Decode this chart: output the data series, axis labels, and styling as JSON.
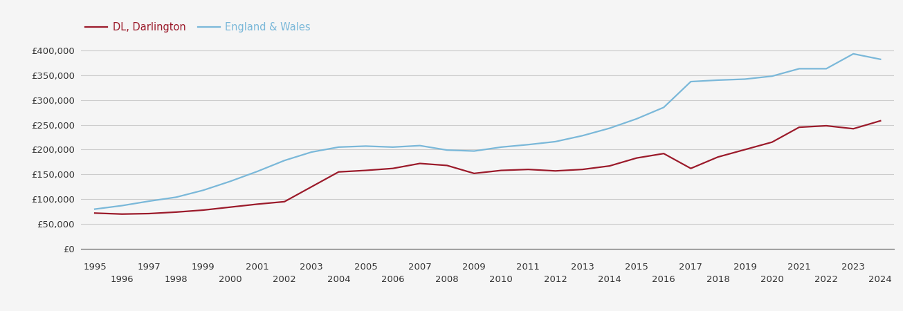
{
  "legend_labels": [
    "DL, Darlington",
    "England & Wales"
  ],
  "darlington_color": "#9b1a2a",
  "ew_color": "#7ab8d9",
  "background_color": "#f5f5f5",
  "grid_color": "#cccccc",
  "years": [
    1995,
    1996,
    1997,
    1998,
    1999,
    2000,
    2001,
    2002,
    2003,
    2004,
    2005,
    2006,
    2007,
    2008,
    2009,
    2010,
    2011,
    2012,
    2013,
    2014,
    2015,
    2016,
    2017,
    2018,
    2019,
    2020,
    2021,
    2022,
    2023,
    2024
  ],
  "darlington": [
    72000,
    70000,
    71000,
    74000,
    78000,
    84000,
    90000,
    95000,
    125000,
    155000,
    158000,
    162000,
    172000,
    168000,
    152000,
    158000,
    160000,
    157000,
    160000,
    167000,
    183000,
    192000,
    162000,
    185000,
    200000,
    215000,
    245000,
    248000,
    242000,
    258000
  ],
  "england_wales": [
    80000,
    87000,
    96000,
    104000,
    118000,
    136000,
    156000,
    178000,
    195000,
    205000,
    207000,
    205000,
    208000,
    199000,
    197000,
    205000,
    210000,
    216000,
    228000,
    243000,
    262000,
    285000,
    337000,
    340000,
    342000,
    348000,
    363000,
    363000,
    393000,
    382000
  ],
  "ylim": [
    0,
    420000
  ],
  "xlim": [
    1994.5,
    2024.5
  ],
  "yticks": [
    0,
    50000,
    100000,
    150000,
    200000,
    250000,
    300000,
    350000,
    400000
  ],
  "ytick_labels": [
    "£0",
    "£50,000",
    "£100,000",
    "£150,000",
    "£200,000",
    "£250,000",
    "£300,000",
    "£350,000",
    "£400,000"
  ],
  "odd_years": [
    1995,
    1997,
    1999,
    2001,
    2003,
    2005,
    2007,
    2009,
    2011,
    2013,
    2015,
    2017,
    2019,
    2021,
    2023
  ],
  "even_years": [
    1996,
    1998,
    2000,
    2002,
    2004,
    2006,
    2008,
    2010,
    2012,
    2014,
    2016,
    2018,
    2020,
    2022,
    2024
  ],
  "line_width": 1.6,
  "legend_fontsize": 10.5,
  "tick_fontsize": 9.5
}
